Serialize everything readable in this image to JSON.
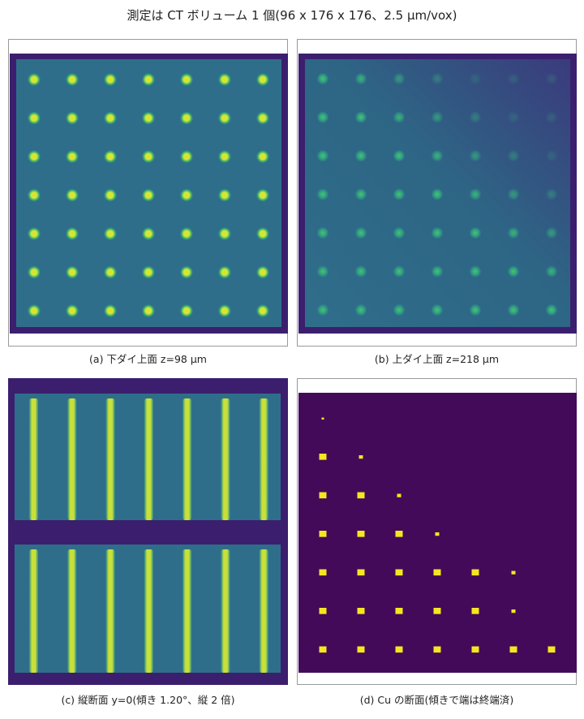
{
  "title": "測定は CT ボリューム 1 個(96 x 176 x 176、2.5 µm/vox)",
  "panels": {
    "a": {
      "caption": "(a) 下ダイ上面 z=98 µm",
      "cmap": "viridis",
      "grid": {
        "cols": 7,
        "rows": 7
      }
    },
    "b": {
      "caption": "(b) 上ダイ上面 z=218 µm",
      "cmap": "viridis",
      "grid": {
        "cols": 7,
        "rows": 7
      },
      "gradient": "fades toward top-right"
    },
    "c": {
      "caption": "(c) 縦断面 y=0(傾き 1.20°、縦 2 倍)",
      "cmap": "viridis",
      "columns": 7,
      "layers": 2
    },
    "d": {
      "caption": "(d) Cu の断面(傾きで端は終端済)",
      "cmap": "binary viridis",
      "row_counts": [
        1,
        2,
        3,
        4,
        6,
        6,
        7
      ]
    }
  },
  "colors": {
    "background_dark": "#3b1f6e",
    "die": "#2f6e8a",
    "bump_core": "#d4e635",
    "bump_halo": "#39b070",
    "mask_bg": "#430a59",
    "mask_fg": "#f5e61f"
  }
}
